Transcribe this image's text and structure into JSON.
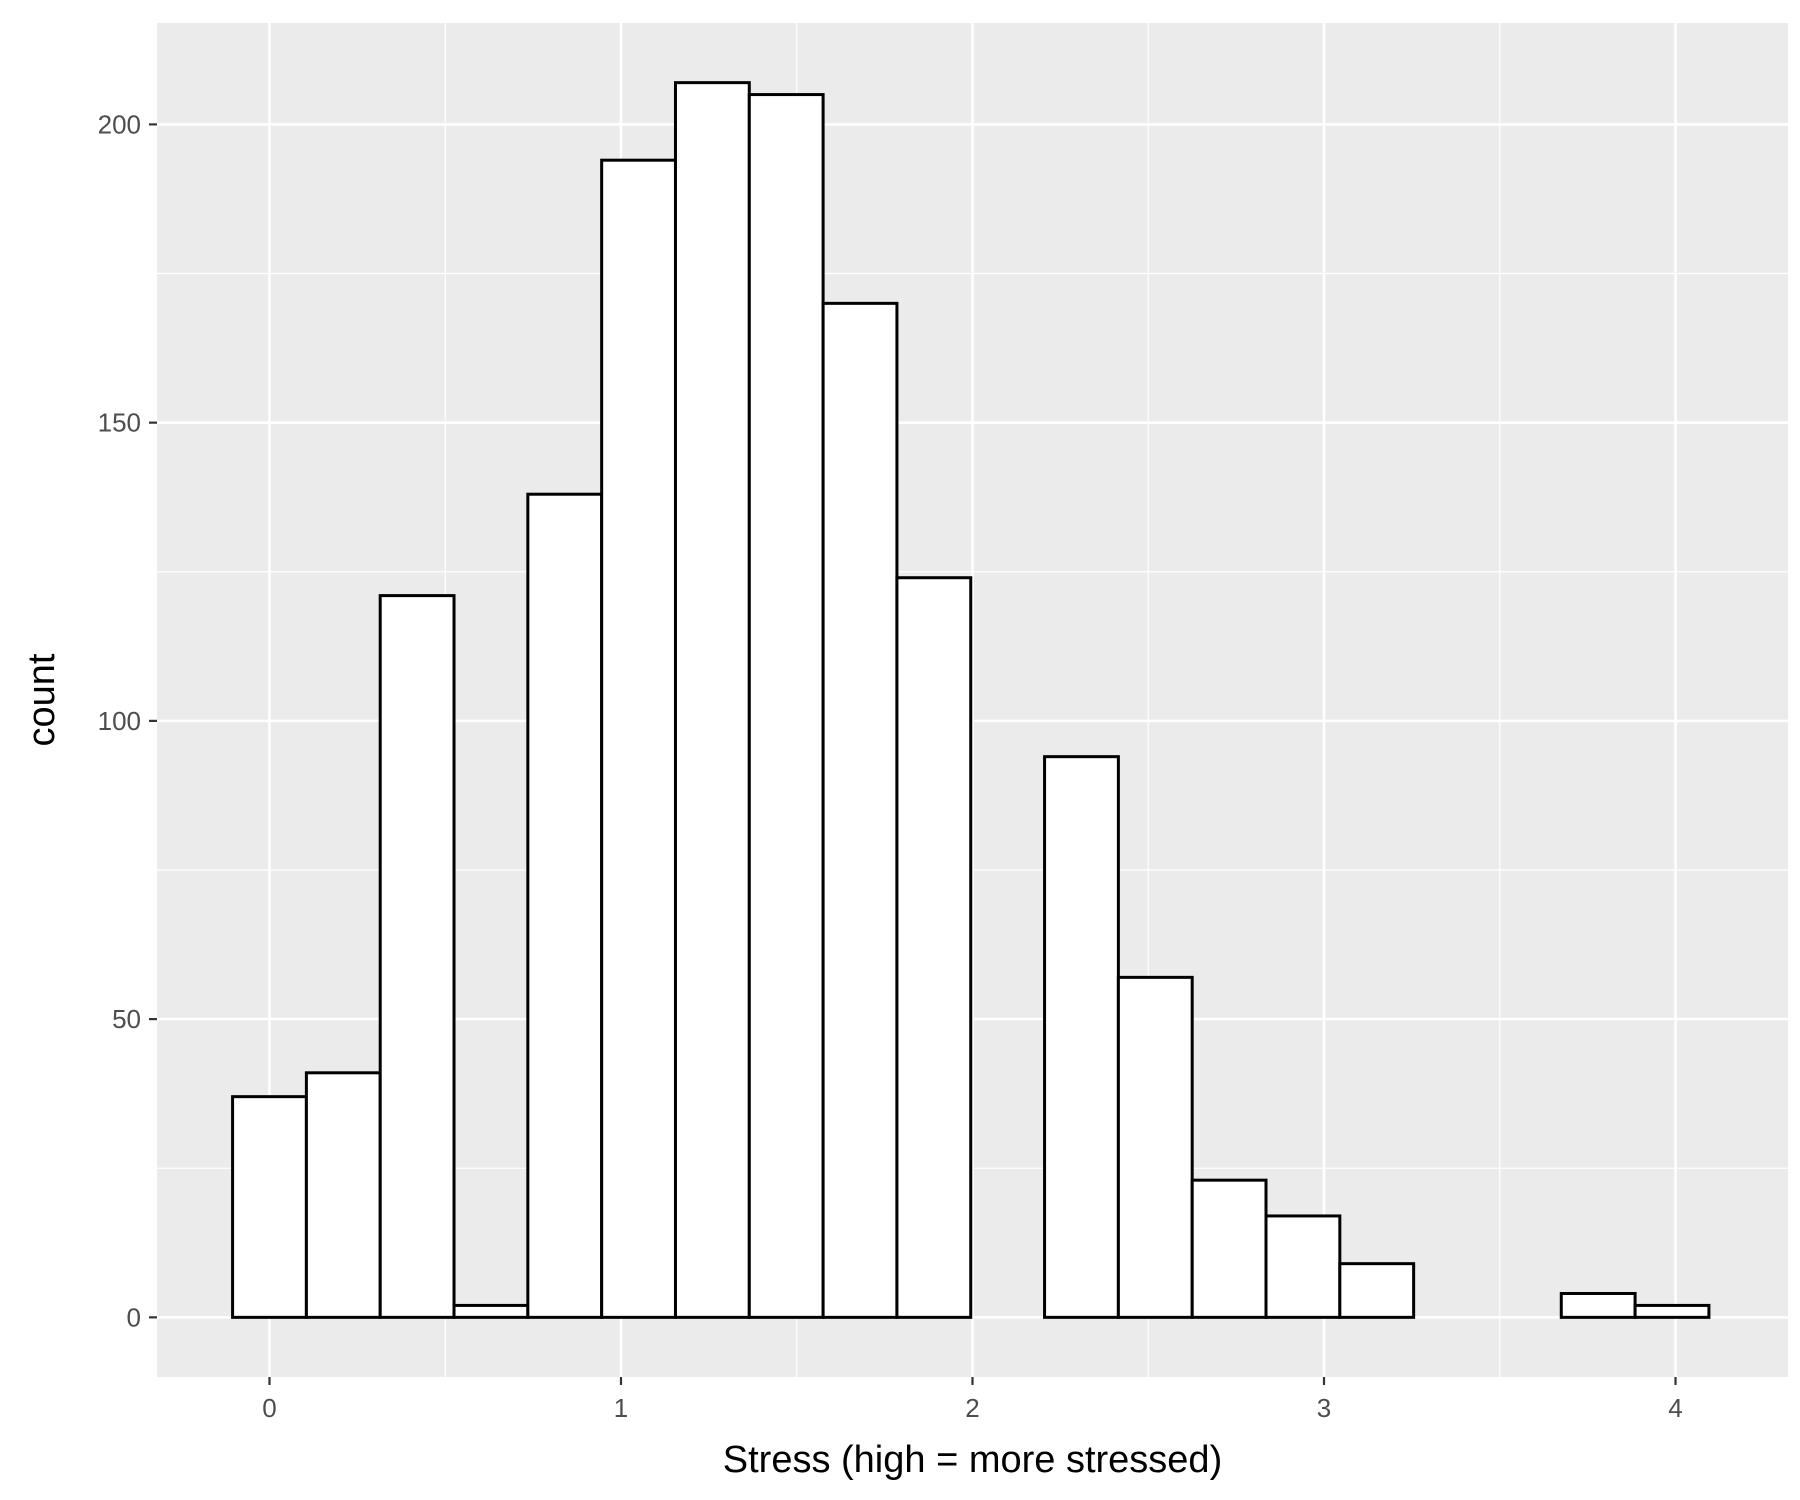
{
  "chart_data": {
    "type": "bar",
    "subtype": "histogram",
    "title": "",
    "xlabel": "Stress (high = more stressed)",
    "ylabel": "count",
    "xlim": [
      -0.32,
      4.32
    ],
    "ylim": [
      -10,
      217
    ],
    "x_ticks": [
      0,
      1,
      2,
      3,
      4
    ],
    "y_ticks": [
      0,
      50,
      100,
      150,
      200
    ],
    "grid": true,
    "bin_width": 0.21,
    "bins": [
      {
        "x_start": -0.105,
        "x_end": 0.105,
        "count": 37
      },
      {
        "x_start": 0.105,
        "x_end": 0.315,
        "count": 41
      },
      {
        "x_start": 0.315,
        "x_end": 0.525,
        "count": 121
      },
      {
        "x_start": 0.525,
        "x_end": 0.735,
        "count": 2
      },
      {
        "x_start": 0.735,
        "x_end": 0.945,
        "count": 138
      },
      {
        "x_start": 0.945,
        "x_end": 1.155,
        "count": 194
      },
      {
        "x_start": 1.155,
        "x_end": 1.365,
        "count": 207
      },
      {
        "x_start": 1.365,
        "x_end": 1.575,
        "count": 205
      },
      {
        "x_start": 1.575,
        "x_end": 1.785,
        "count": 170
      },
      {
        "x_start": 1.785,
        "x_end": 1.995,
        "count": 124
      },
      {
        "x_start": 1.995,
        "x_end": 2.205,
        "count": 0
      },
      {
        "x_start": 2.205,
        "x_end": 2.415,
        "count": 94
      },
      {
        "x_start": 2.415,
        "x_end": 2.625,
        "count": 57
      },
      {
        "x_start": 2.625,
        "x_end": 2.835,
        "count": 23
      },
      {
        "x_start": 2.835,
        "x_end": 3.045,
        "count": 17
      },
      {
        "x_start": 3.045,
        "x_end": 3.255,
        "count": 9
      },
      {
        "x_start": 3.255,
        "x_end": 3.465,
        "count": 0
      },
      {
        "x_start": 3.465,
        "x_end": 3.675,
        "count": 0
      },
      {
        "x_start": 3.675,
        "x_end": 3.885,
        "count": 4
      },
      {
        "x_start": 3.885,
        "x_end": 4.095,
        "count": 2
      }
    ],
    "colors": {
      "panel_background": "#ebebeb",
      "grid": "#ffffff",
      "bar_fill": "#ffffff",
      "bar_outline": "#000000",
      "tick_label": "#4d4d4d",
      "axis_title": "#000000"
    }
  }
}
